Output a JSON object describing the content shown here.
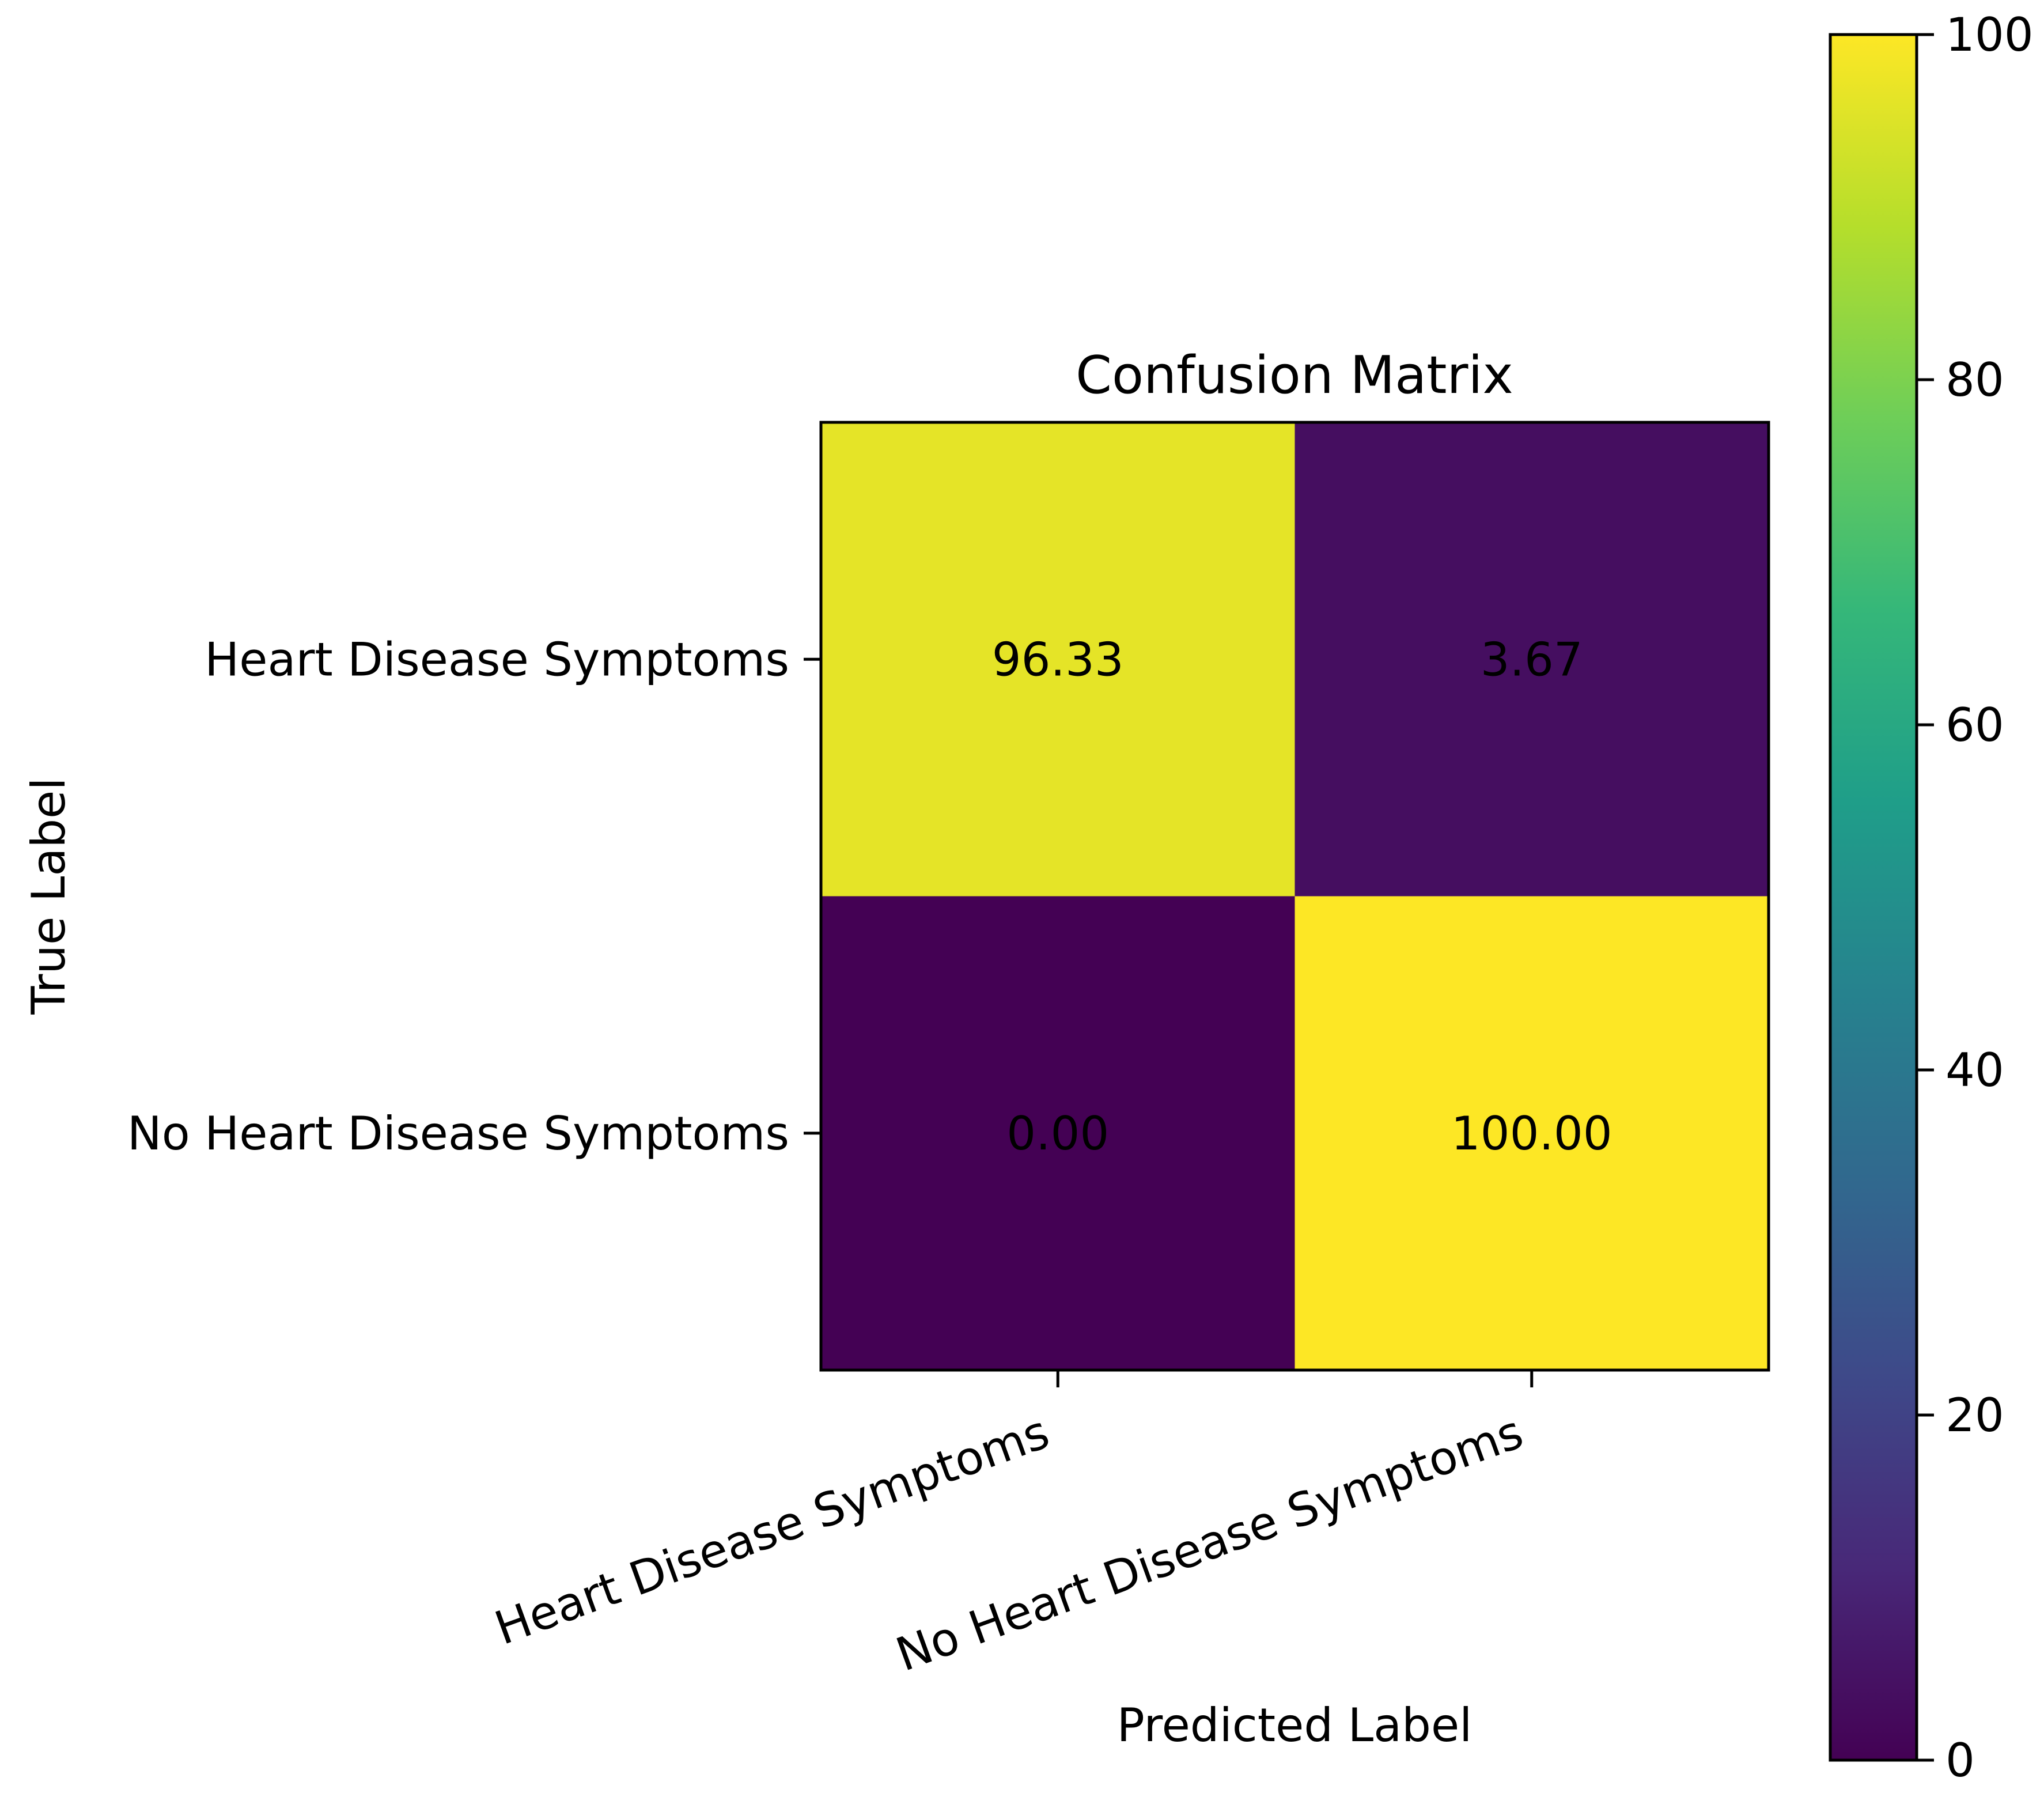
{
  "chart_data": {
    "type": "heatmap",
    "title": "Confusion Matrix",
    "xlabel": "Predicted Label",
    "ylabel": "True Label",
    "x_categories": [
      "Heart Disease Symptoms",
      "No Heart Disease Symptoms"
    ],
    "y_categories": [
      "Heart Disease Symptoms",
      "No Heart Disease Symptoms"
    ],
    "values": [
      [
        96.33,
        3.67
      ],
      [
        0.0,
        100.0
      ]
    ],
    "value_labels": [
      [
        "96.33",
        "3.67"
      ],
      [
        "0.00",
        "100.00"
      ]
    ],
    "colormap": "viridis",
    "colorbar": {
      "range": [
        0,
        100
      ],
      "ticks": [
        0,
        20,
        40,
        60,
        80,
        100
      ],
      "tick_labels": [
        "0",
        "20",
        "40",
        "60",
        "80",
        "100"
      ]
    },
    "grid": false
  },
  "colors": {
    "viridis_stops": [
      "#440154",
      "#482878",
      "#3e4989",
      "#31688e",
      "#26828e",
      "#1f9e89",
      "#35b779",
      "#6ece58",
      "#b5de2b",
      "#fde725"
    ]
  }
}
